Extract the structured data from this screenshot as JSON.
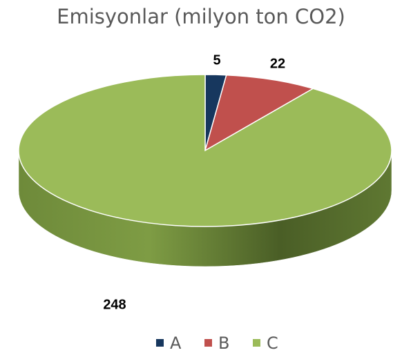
{
  "chart_data": {
    "type": "pie",
    "title": "Emisyonlar (milyon ton CO2)",
    "categories": [
      "A",
      "B",
      "C"
    ],
    "values": [
      5,
      22,
      248
    ],
    "colors": [
      "#17375e",
      "#c0504d",
      "#9bbb59"
    ],
    "legend": "bottom",
    "data_labels": true
  }
}
